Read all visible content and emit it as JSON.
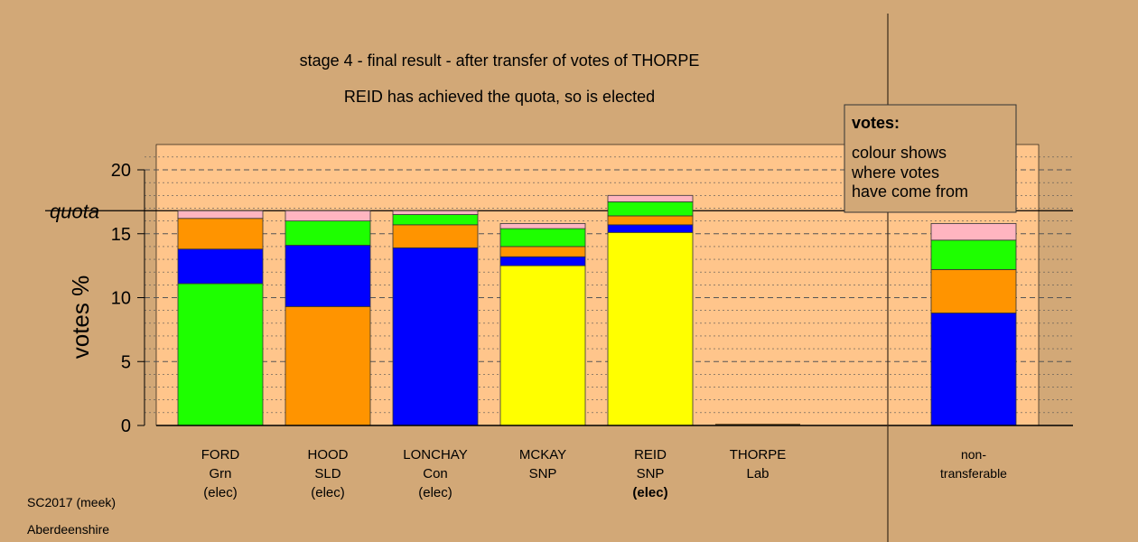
{
  "chart_data": {
    "type": "bar",
    "stacked": true,
    "title": "stage 4 - final result - after transfer of votes of THORPE",
    "subtitle": "REID has achieved the quota, so is elected",
    "ylabel": "votes %",
    "ylim": [
      0,
      21.5
    ],
    "yticks": [
      "0",
      "5",
      "10",
      "15",
      "20"
    ],
    "quota": {
      "label": "quota",
      "value": 16.8
    },
    "grid": true,
    "legend": {
      "title": "votes:",
      "lines": [
        "colour shows",
        "where votes",
        "have come from"
      ],
      "placement": "top-right"
    },
    "colors": {
      "green": "#1eff00",
      "orange": "#ff9400",
      "blue": "#0000ff",
      "yellow": "#ffff00",
      "pink": "#ffb5c0"
    },
    "categories": [
      {
        "name": "FORD",
        "party": "Grn",
        "status": "(elec)",
        "segments": [
          {
            "color": "green",
            "value": 11.1
          },
          {
            "color": "blue",
            "value": 2.7
          },
          {
            "color": "orange",
            "value": 2.4
          },
          {
            "color": "pink",
            "value": 0.6
          }
        ]
      },
      {
        "name": "HOOD",
        "party": "SLD",
        "status": "(elec)",
        "segments": [
          {
            "color": "orange",
            "value": 9.3
          },
          {
            "color": "blue",
            "value": 4.8
          },
          {
            "color": "green",
            "value": 1.9
          },
          {
            "color": "pink",
            "value": 0.8
          }
        ]
      },
      {
        "name": "LONCHAY",
        "party": "Con",
        "status": "(elec)",
        "segments": [
          {
            "color": "blue",
            "value": 13.9
          },
          {
            "color": "orange",
            "value": 1.8
          },
          {
            "color": "green",
            "value": 0.8
          },
          {
            "color": "pink",
            "value": 0.3
          }
        ]
      },
      {
        "name": "MCKAY",
        "party": "SNP",
        "status": "",
        "segments": [
          {
            "color": "yellow",
            "value": 12.5
          },
          {
            "color": "blue",
            "value": 0.7
          },
          {
            "color": "orange",
            "value": 0.8
          },
          {
            "color": "green",
            "value": 1.4
          },
          {
            "color": "pink",
            "value": 0.4
          }
        ]
      },
      {
        "name": "REID",
        "party": "SNP",
        "status": "(elec)",
        "segments": [
          {
            "color": "yellow",
            "value": 15.1
          },
          {
            "color": "blue",
            "value": 0.6
          },
          {
            "color": "orange",
            "value": 0.7
          },
          {
            "color": "green",
            "value": 1.1
          },
          {
            "color": "pink",
            "value": 0.5
          }
        ]
      },
      {
        "name": "THORPE",
        "party": "Lab",
        "status": "",
        "segments": []
      },
      {
        "name": "non-",
        "party": "transferable",
        "status": "",
        "segments": [
          {
            "color": "blue",
            "value": 8.8
          },
          {
            "color": "orange",
            "value": 3.4
          },
          {
            "color": "green",
            "value": 2.3
          },
          {
            "color": "pink",
            "value": 1.3
          }
        ]
      }
    ]
  },
  "footer": {
    "line1": "SC2017 (meek)",
    "line2": "Aberdeenshire"
  }
}
